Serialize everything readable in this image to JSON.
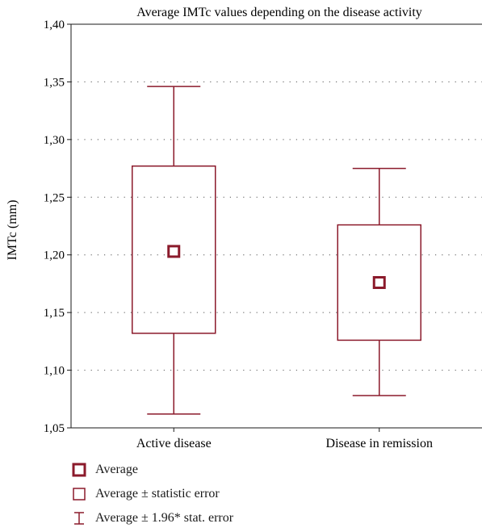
{
  "chart_data": {
    "type": "box",
    "title": "Average IMTc values depending on the disease activity",
    "xlabel": "",
    "ylabel": "IMTc (mm)",
    "ylim": [
      1.05,
      1.4
    ],
    "yticks": [
      1.05,
      1.1,
      1.15,
      1.2,
      1.25,
      1.3,
      1.35,
      1.4
    ],
    "ytick_labels": [
      "1,05",
      "1,10",
      "1,15",
      "1,20",
      "1,25",
      "1,30",
      "1,35",
      "1,40"
    ],
    "grid": true,
    "categories": [
      "Active disease",
      "Disease in remission"
    ],
    "series": [
      {
        "category": "Active disease",
        "mean": 1.203,
        "box_low": 1.132,
        "box_high": 1.277,
        "whisker_low": 1.062,
        "whisker_high": 1.346
      },
      {
        "category": "Disease in remission",
        "mean": 1.176,
        "box_low": 1.126,
        "box_high": 1.226,
        "whisker_low": 1.078,
        "whisker_high": 1.275
      }
    ],
    "legend": [
      {
        "label": "Average",
        "symbol": "mean-marker-icon"
      },
      {
        "label": "Average ± statistic error",
        "symbol": "box-icon"
      },
      {
        "label": "Average ± 1.96* stat. error",
        "symbol": "whisker-icon"
      }
    ],
    "legend_position": "bottom-left",
    "colors": {
      "series": "#8b1a2b",
      "axis": "#1a1a1a",
      "grid": "#555555"
    }
  }
}
